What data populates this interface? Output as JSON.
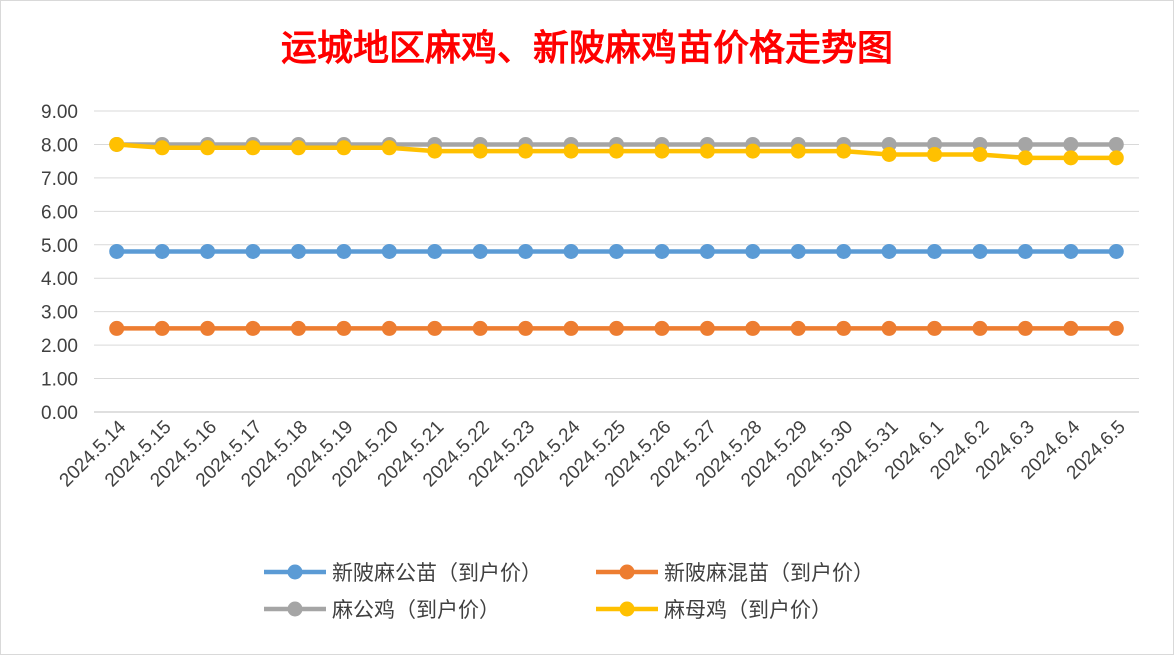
{
  "chart_data": {
    "type": "line",
    "title": "运城地区麻鸡、新陂麻鸡苗价格走势图",
    "xlabel": "",
    "ylabel": "",
    "ylim": [
      0,
      9
    ],
    "yticks": [
      "9.00",
      "8.00",
      "7.00",
      "6.00",
      "5.00",
      "4.00",
      "3.00",
      "2.00",
      "1.00",
      "0.00"
    ],
    "grid": true,
    "legend_position": "bottom",
    "categories": [
      "2024.5.14",
      "2024.5.15",
      "2024.5.16",
      "2024.5.17",
      "2024.5.18",
      "2024.5.19",
      "2024.5.20",
      "2024.5.21",
      "2024.5.22",
      "2024.5.23",
      "2024.5.24",
      "2024.5.25",
      "2024.5.26",
      "2024.5.27",
      "2024.5.28",
      "2024.5.29",
      "2024.5.30",
      "2024.5.31",
      "2024.6.1",
      "2024.6.2",
      "2024.6.3",
      "2024.6.4",
      "2024.6.5"
    ],
    "series": [
      {
        "name": "新陂麻公苗（到户价）",
        "color": "#5b9bd5",
        "values": [
          4.8,
          4.8,
          4.8,
          4.8,
          4.8,
          4.8,
          4.8,
          4.8,
          4.8,
          4.8,
          4.8,
          4.8,
          4.8,
          4.8,
          4.8,
          4.8,
          4.8,
          4.8,
          4.8,
          4.8,
          4.8,
          4.8,
          4.8
        ]
      },
      {
        "name": "新陂麻混苗（到户价）",
        "color": "#ed7d31",
        "values": [
          2.5,
          2.5,
          2.5,
          2.5,
          2.5,
          2.5,
          2.5,
          2.5,
          2.5,
          2.5,
          2.5,
          2.5,
          2.5,
          2.5,
          2.5,
          2.5,
          2.5,
          2.5,
          2.5,
          2.5,
          2.5,
          2.5,
          2.5
        ]
      },
      {
        "name": "麻公鸡（到户价）",
        "color": "#a5a5a5",
        "values": [
          8.0,
          8.0,
          8.0,
          8.0,
          8.0,
          8.0,
          8.0,
          8.0,
          8.0,
          8.0,
          8.0,
          8.0,
          8.0,
          8.0,
          8.0,
          8.0,
          8.0,
          8.0,
          8.0,
          8.0,
          8.0,
          8.0,
          8.0
        ]
      },
      {
        "name": "麻母鸡（到户价）",
        "color": "#ffc000",
        "values": [
          8.0,
          7.9,
          7.9,
          7.9,
          7.9,
          7.9,
          7.9,
          7.8,
          7.8,
          7.8,
          7.8,
          7.8,
          7.8,
          7.8,
          7.8,
          7.8,
          7.8,
          7.7,
          7.7,
          7.7,
          7.6,
          7.6,
          7.6
        ]
      }
    ]
  }
}
